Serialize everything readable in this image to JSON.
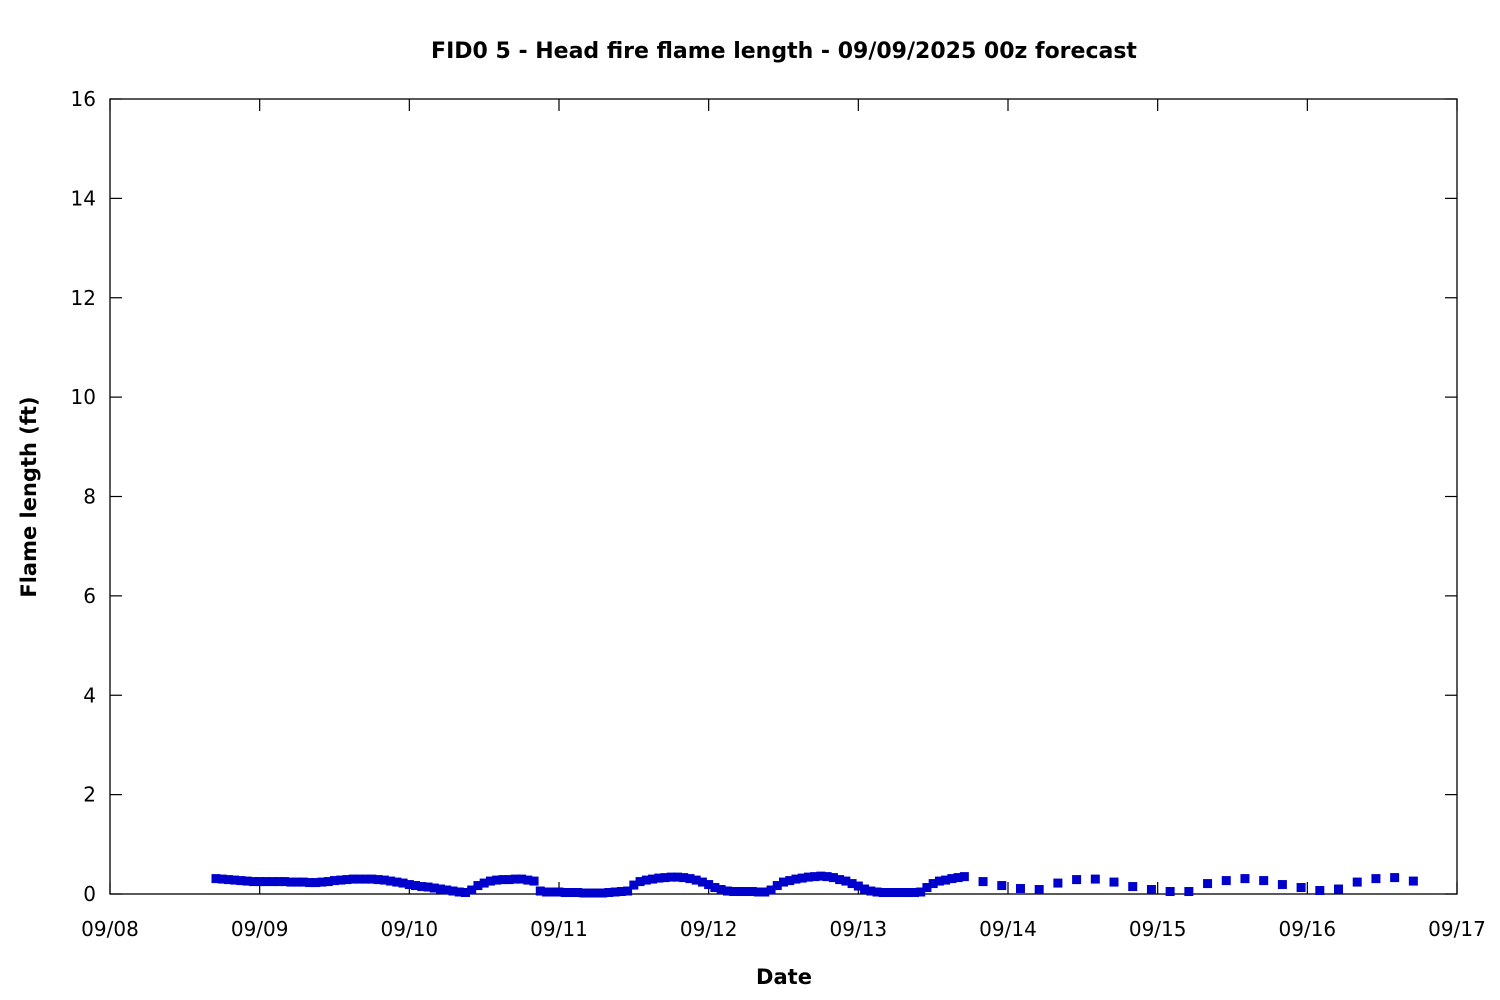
{
  "chart_data": {
    "type": "scatter",
    "title": "FID0 5 - Head fire flame length - 09/09/2025 00z forecast",
    "xlabel": "Date",
    "ylabel": "Flame length (ft)",
    "xlim": [
      "09/08",
      "09/17"
    ],
    "ylim": [
      0,
      16
    ],
    "x_ticks": [
      "09/08",
      "09/09",
      "09/10",
      "09/11",
      "09/12",
      "09/13",
      "09/14",
      "09/15",
      "09/16",
      "09/17"
    ],
    "y_ticks": [
      "0",
      "2",
      "4",
      "6",
      "8",
      "10",
      "12",
      "14",
      "16"
    ],
    "grid": false,
    "legend": false,
    "marker": "square",
    "color": "#0000cc",
    "series": [
      {
        "x": [
          "09/08 17:00",
          "09/08 18:00",
          "09/08 19:00",
          "09/08 20:00",
          "09/08 21:00",
          "09/08 22:00",
          "09/08 23:00",
          "09/09 00:00",
          "09/09 01:00",
          "09/09 02:00",
          "09/09 03:00",
          "09/09 04:00",
          "09/09 05:00",
          "09/09 06:00",
          "09/09 07:00",
          "09/09 08:00",
          "09/09 09:00",
          "09/09 10:00",
          "09/09 11:00",
          "09/09 12:00",
          "09/09 13:00",
          "09/09 14:00",
          "09/09 15:00",
          "09/09 16:00",
          "09/09 17:00",
          "09/09 18:00",
          "09/09 19:00",
          "09/09 20:00",
          "09/09 21:00",
          "09/09 22:00",
          "09/09 23:00",
          "09/10 00:00",
          "09/10 01:00",
          "09/10 02:00",
          "09/10 03:00",
          "09/10 04:00",
          "09/10 05:00",
          "09/10 06:00",
          "09/10 07:00",
          "09/10 08:00",
          "09/10 09:00",
          "09/10 10:00",
          "09/10 11:00",
          "09/10 12:00",
          "09/10 13:00",
          "09/10 14:00",
          "09/10 15:00",
          "09/10 16:00",
          "09/10 17:00",
          "09/10 18:00",
          "09/10 19:00",
          "09/10 20:00",
          "09/10 21:00",
          "09/10 22:00",
          "09/10 23:00",
          "09/11 00:00",
          "09/11 01:00",
          "09/11 02:00",
          "09/11 03:00",
          "09/11 04:00",
          "09/11 05:00",
          "09/11 06:00",
          "09/11 07:00",
          "09/11 08:00",
          "09/11 09:00",
          "09/11 10:00",
          "09/11 11:00",
          "09/11 12:00",
          "09/11 13:00",
          "09/11 14:00",
          "09/11 15:00",
          "09/11 16:00",
          "09/11 17:00",
          "09/11 18:00",
          "09/11 19:00",
          "09/11 20:00",
          "09/11 21:00",
          "09/11 22:00",
          "09/11 23:00",
          "09/12 00:00",
          "09/12 01:00",
          "09/12 02:00",
          "09/12 03:00",
          "09/12 04:00",
          "09/12 05:00",
          "09/12 06:00",
          "09/12 07:00",
          "09/12 08:00",
          "09/12 09:00",
          "09/12 10:00",
          "09/12 11:00",
          "09/12 12:00",
          "09/12 13:00",
          "09/12 14:00",
          "09/12 15:00",
          "09/12 16:00",
          "09/12 17:00",
          "09/12 18:00",
          "09/12 19:00",
          "09/12 20:00",
          "09/12 21:00",
          "09/12 22:00",
          "09/12 23:00",
          "09/13 00:00",
          "09/13 01:00",
          "09/13 02:00",
          "09/13 03:00",
          "09/13 04:00",
          "09/13 05:00",
          "09/13 06:00",
          "09/13 07:00",
          "09/13 08:00",
          "09/13 09:00",
          "09/13 10:00",
          "09/13 11:00",
          "09/13 12:00",
          "09/13 13:00",
          "09/13 14:00",
          "09/13 15:00",
          "09/13 16:00",
          "09/13 17:00",
          "09/13 20:00",
          "09/13 23:00",
          "09/14 02:00",
          "09/14 05:00",
          "09/14 08:00",
          "09/14 11:00",
          "09/14 14:00",
          "09/14 17:00",
          "09/14 20:00",
          "09/14 23:00",
          "09/15 02:00",
          "09/15 05:00",
          "09/15 08:00",
          "09/15 11:00",
          "09/15 14:00",
          "09/15 17:00",
          "09/15 20:00",
          "09/15 23:00",
          "09/16 02:00",
          "09/16 05:00",
          "09/16 08:00",
          "09/16 11:00",
          "09/16 14:00",
          "09/16 17:00"
        ],
        "y": [
          0.31,
          0.3,
          0.29,
          0.28,
          0.27,
          0.26,
          0.25,
          0.25,
          0.25,
          0.25,
          0.25,
          0.25,
          0.24,
          0.24,
          0.24,
          0.23,
          0.23,
          0.24,
          0.25,
          0.27,
          0.28,
          0.29,
          0.3,
          0.3,
          0.3,
          0.3,
          0.29,
          0.28,
          0.26,
          0.24,
          0.22,
          0.19,
          0.17,
          0.15,
          0.14,
          0.12,
          0.1,
          0.08,
          0.06,
          0.04,
          0.03,
          0.08,
          0.17,
          0.22,
          0.26,
          0.28,
          0.29,
          0.29,
          0.3,
          0.3,
          0.28,
          0.26,
          0.06,
          0.04,
          0.04,
          0.04,
          0.03,
          0.03,
          0.03,
          0.02,
          0.02,
          0.02,
          0.02,
          0.03,
          0.04,
          0.05,
          0.06,
          0.18,
          0.25,
          0.28,
          0.3,
          0.32,
          0.33,
          0.34,
          0.34,
          0.33,
          0.31,
          0.28,
          0.24,
          0.19,
          0.13,
          0.09,
          0.06,
          0.05,
          0.05,
          0.05,
          0.05,
          0.04,
          0.04,
          0.08,
          0.17,
          0.24,
          0.27,
          0.3,
          0.32,
          0.34,
          0.35,
          0.36,
          0.35,
          0.33,
          0.29,
          0.26,
          0.21,
          0.16,
          0.1,
          0.06,
          0.04,
          0.03,
          0.03,
          0.03,
          0.03,
          0.03,
          0.03,
          0.04,
          0.13,
          0.21,
          0.26,
          0.28,
          0.31,
          0.33,
          0.35,
          0.25,
          0.17,
          0.11,
          0.09,
          0.22,
          0.29,
          0.3,
          0.24,
          0.15,
          0.09,
          0.05,
          0.05,
          0.21,
          0.27,
          0.31,
          0.27,
          0.19,
          0.13,
          0.07,
          0.1,
          0.24,
          0.31,
          0.33,
          0.26
        ]
      }
    ]
  }
}
